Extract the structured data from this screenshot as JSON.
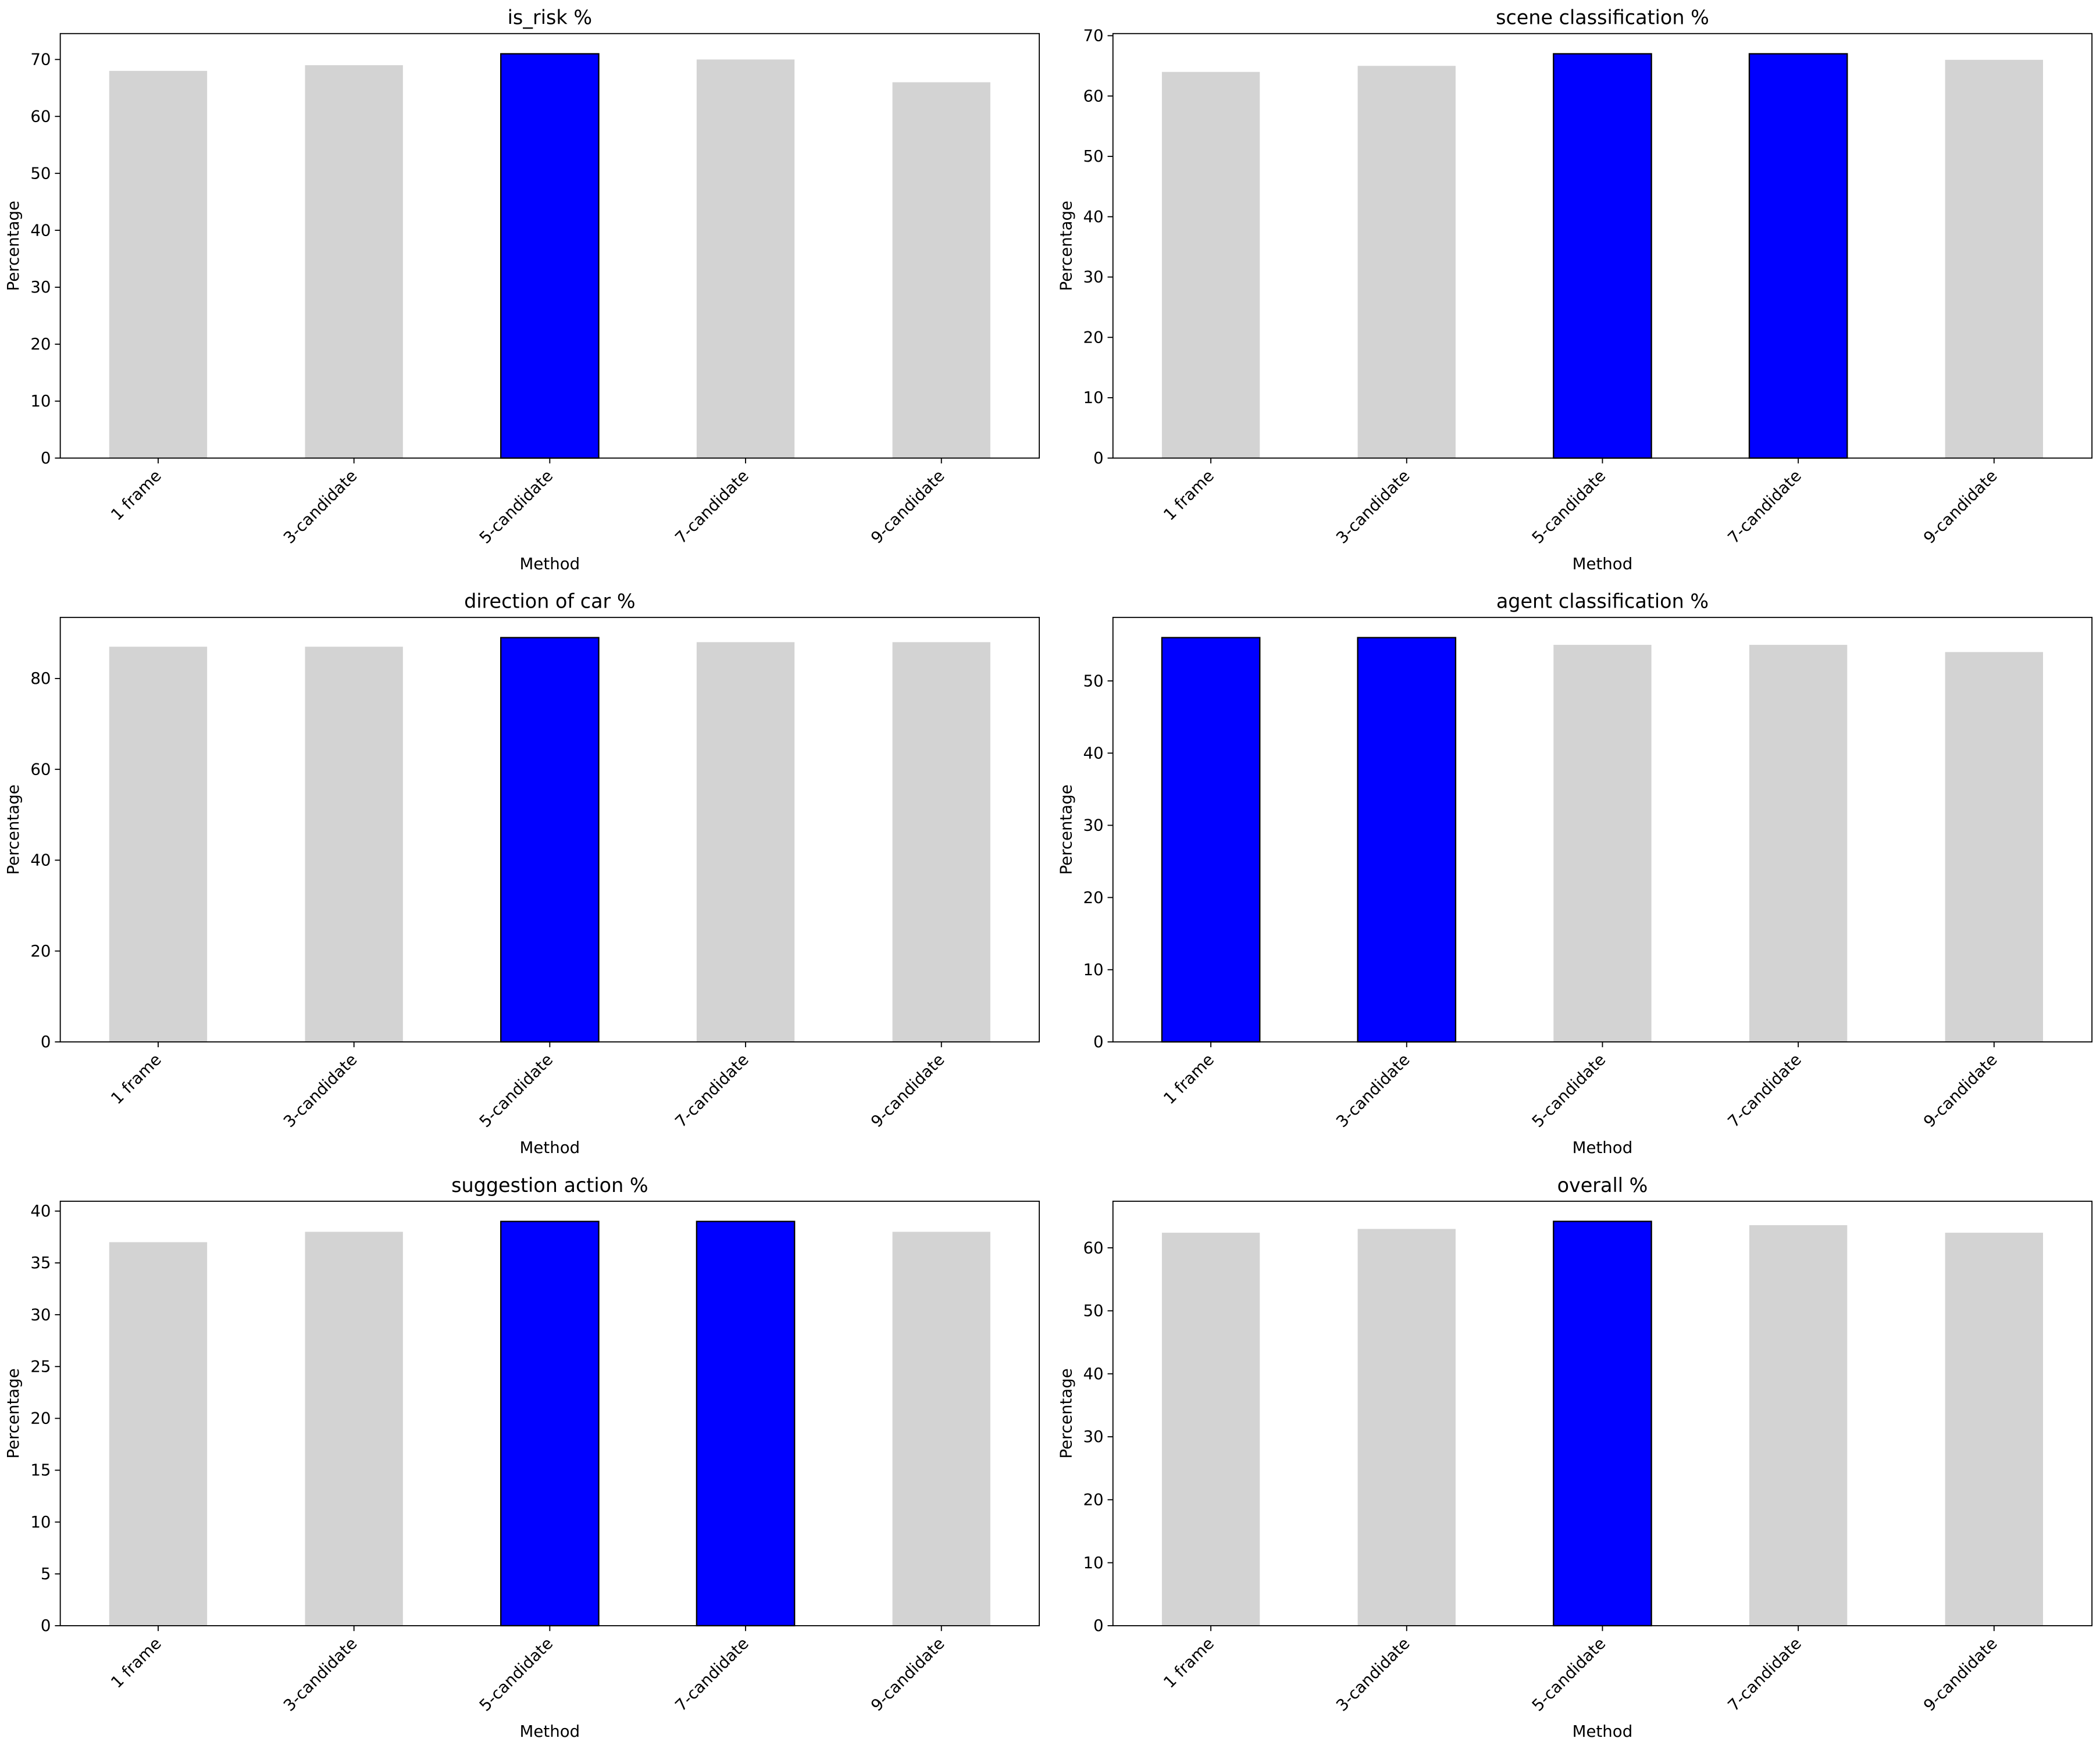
{
  "chart_data": [
    {
      "type": "bar",
      "title": "is_risk %",
      "xlabel": "Method",
      "ylabel": "Percentage",
      "categories": [
        "1 frame",
        "3-candidate",
        "5-candidate",
        "7-candidate",
        "9-candidate"
      ],
      "values": [
        68,
        69,
        71,
        70,
        66
      ],
      "colors": [
        "#d3d3d3",
        "#d3d3d3",
        "#0000ff",
        "#d3d3d3",
        "#d3d3d3"
      ],
      "edge_colors": [
        "none",
        "none",
        "#000000",
        "none",
        "none"
      ],
      "ylim": [
        0,
        74.55
      ],
      "yticks": [
        0,
        10,
        20,
        30,
        40,
        50,
        60,
        70
      ]
    },
    {
      "type": "bar",
      "title": "scene classification %",
      "xlabel": "Method",
      "ylabel": "Percentage",
      "categories": [
        "1 frame",
        "3-candidate",
        "5-candidate",
        "7-candidate",
        "9-candidate"
      ],
      "values": [
        64,
        65,
        67,
        67,
        66
      ],
      "colors": [
        "#d3d3d3",
        "#d3d3d3",
        "#0000ff",
        "#0000ff",
        "#d3d3d3"
      ],
      "edge_colors": [
        "none",
        "none",
        "#000000",
        "#000000",
        "none"
      ],
      "ylim": [
        0,
        70.35
      ],
      "yticks": [
        0,
        10,
        20,
        30,
        40,
        50,
        60,
        70
      ]
    },
    {
      "type": "bar",
      "title": "direction of car %",
      "xlabel": "Method",
      "ylabel": "Percentage",
      "categories": [
        "1 frame",
        "3-candidate",
        "5-candidate",
        "7-candidate",
        "9-candidate"
      ],
      "values": [
        87,
        87,
        89,
        88,
        88
      ],
      "colors": [
        "#d3d3d3",
        "#d3d3d3",
        "#0000ff",
        "#d3d3d3",
        "#d3d3d3"
      ],
      "edge_colors": [
        "none",
        "none",
        "#000000",
        "none",
        "none"
      ],
      "ylim": [
        0,
        93.45
      ],
      "yticks": [
        0,
        20,
        40,
        60,
        80
      ]
    },
    {
      "type": "bar",
      "title": "agent classification %",
      "xlabel": "Method",
      "ylabel": "Percentage",
      "categories": [
        "1 frame",
        "3-candidate",
        "5-candidate",
        "7-candidate",
        "9-candidate"
      ],
      "values": [
        56,
        56,
        55,
        55,
        54
      ],
      "colors": [
        "#0000ff",
        "#0000ff",
        "#d3d3d3",
        "#d3d3d3",
        "#d3d3d3"
      ],
      "edge_colors": [
        "#000000",
        "#000000",
        "none",
        "none",
        "none"
      ],
      "ylim": [
        0,
        58.8
      ],
      "yticks": [
        0,
        10,
        20,
        30,
        40,
        50
      ]
    },
    {
      "type": "bar",
      "title": "suggestion action %",
      "xlabel": "Method",
      "ylabel": "Percentage",
      "categories": [
        "1 frame",
        "3-candidate",
        "5-candidate",
        "7-candidate",
        "9-candidate"
      ],
      "values": [
        37,
        38,
        39,
        39,
        38
      ],
      "colors": [
        "#d3d3d3",
        "#d3d3d3",
        "#0000ff",
        "#0000ff",
        "#d3d3d3"
      ],
      "edge_colors": [
        "none",
        "none",
        "#000000",
        "#000000",
        "none"
      ],
      "ylim": [
        0,
        40.95
      ],
      "yticks": [
        0,
        5,
        10,
        15,
        20,
        25,
        30,
        35,
        40
      ]
    },
    {
      "type": "bar",
      "title": "overall %",
      "xlabel": "Method",
      "ylabel": "Percentage",
      "categories": [
        "1 frame",
        "3-candidate",
        "5-candidate",
        "7-candidate",
        "9-candidate"
      ],
      "values": [
        62.4,
        63,
        64.2,
        63.6,
        62.4
      ],
      "colors": [
        "#d3d3d3",
        "#d3d3d3",
        "#0000ff",
        "#d3d3d3",
        "#d3d3d3"
      ],
      "edge_colors": [
        "none",
        "none",
        "#000000",
        "none",
        "none"
      ],
      "ylim": [
        0,
        67.4
      ],
      "yticks": [
        0,
        10,
        20,
        30,
        40,
        50,
        60
      ]
    }
  ]
}
